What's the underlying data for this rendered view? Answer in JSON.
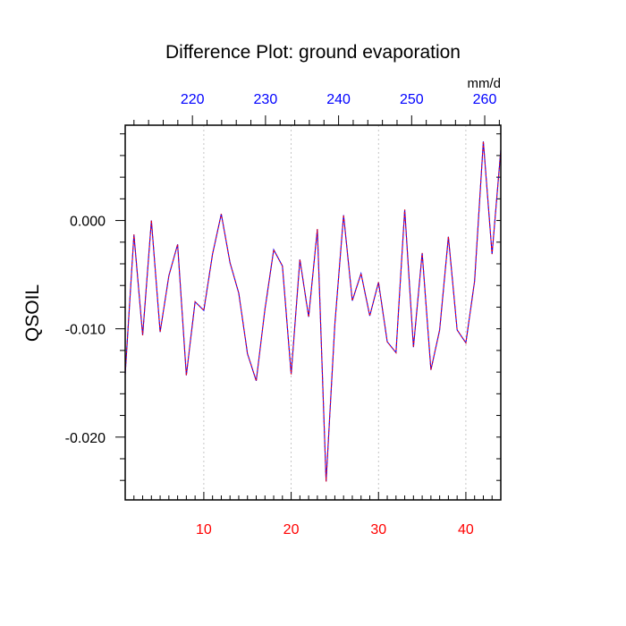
{
  "chart_data": {
    "type": "line",
    "title": "Difference Plot: ground evaporation",
    "ylabel": "QSOIL",
    "units_label": "mm/d",
    "x": {
      "min": 1,
      "max": 44,
      "ticks": [
        10,
        20,
        30,
        40
      ],
      "tick_labels": [
        "10",
        "20",
        "30",
        "40"
      ],
      "minor_step": 1,
      "tick_color": "#ff0000",
      "gridlines_at_major_ticks": true
    },
    "x_top": {
      "min": 210.8,
      "max": 262.2,
      "ticks": [
        220,
        230,
        240,
        250,
        260
      ],
      "tick_labels": [
        "220",
        "230",
        "240",
        "250",
        "260"
      ],
      "minor_step": 2,
      "tick_color": "#0000ff"
    },
    "y": {
      "min": -0.0258,
      "max": 0.0088,
      "ticks": [
        0.0,
        -0.01,
        -0.02
      ],
      "tick_labels": [
        "0.000",
        "-0.010",
        "-0.020"
      ],
      "minor_step": 0.002
    },
    "series": [
      {
        "color": "#0000ff",
        "overlay_color": "#ff0000",
        "dashed": true,
        "x": [
          1,
          2,
          3,
          4,
          5,
          6,
          7,
          8,
          9,
          10,
          11,
          12,
          13,
          14,
          15,
          16,
          17,
          18,
          19,
          20,
          21,
          22,
          23,
          24,
          25,
          26,
          27,
          28,
          29,
          30,
          31,
          32,
          33,
          34,
          35,
          36,
          37,
          38,
          39,
          40,
          41,
          42,
          43,
          44
        ],
        "values": [
          -0.0142,
          -0.0013,
          -0.0106,
          0.0,
          -0.0103,
          -0.0051,
          -0.0022,
          -0.0143,
          -0.0075,
          -0.0083,
          -0.0031,
          0.0006,
          -0.0039,
          -0.0067,
          -0.0123,
          -0.0148,
          -0.0082,
          -0.0027,
          -0.0042,
          -0.0142,
          -0.0036,
          -0.0089,
          -0.0008,
          -0.0241,
          -0.0096,
          0.0005,
          -0.0074,
          -0.0049,
          -0.0088,
          -0.0057,
          -0.0112,
          -0.0122,
          0.001,
          -0.0117,
          -0.003,
          -0.0138,
          -0.0101,
          -0.0015,
          -0.0101,
          -0.0113,
          -0.0056,
          0.0073,
          -0.0031,
          0.0065
        ]
      }
    ]
  }
}
